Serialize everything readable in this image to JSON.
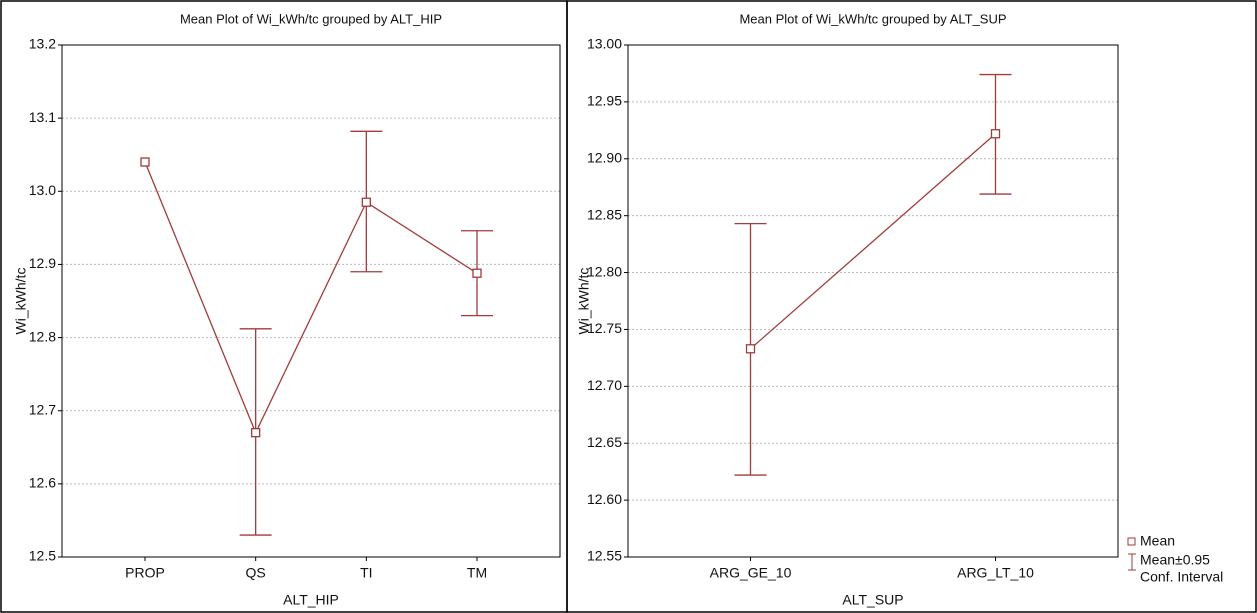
{
  "chart_data": [
    {
      "type": "line",
      "title": "Mean Plot of Wi_kWh/tc grouped by  ALT_HIP",
      "x_label": "ALT_HIP",
      "y_label": "Wi_kWh/tc",
      "categories": [
        "PROP",
        "QS",
        "TI",
        "TM"
      ],
      "series": [
        {
          "name": "Mean",
          "color": "#a23b3b",
          "values": [
            13.04,
            12.67,
            12.985,
            12.888
          ],
          "ci_lower": [
            null,
            12.53,
            12.89,
            12.83
          ],
          "ci_upper": [
            null,
            12.812,
            13.082,
            12.946
          ]
        }
      ],
      "ylim": [
        12.5,
        13.2
      ],
      "yticks": [
        12.5,
        12.6,
        12.7,
        12.8,
        12.9,
        {
          "value": 13.0,
          "label": "13.0"
        },
        13.1,
        13.2
      ],
      "grid": true
    },
    {
      "type": "line",
      "title": "Mean Plot of Wi_kWh/tc grouped by  ALT_SUP",
      "x_label": "ALT_SUP",
      "y_label": "Wi_kWh/tc",
      "categories": [
        "ARG_GE_10",
        "ARG_LT_10"
      ],
      "series": [
        {
          "name": "Mean",
          "color": "#a23b3b",
          "values": [
            12.733,
            12.922
          ],
          "ci_lower": [
            12.622,
            12.869
          ],
          "ci_upper": [
            12.843,
            12.974
          ]
        }
      ],
      "ylim": [
        12.55,
        13.0
      ],
      "yticks": [
        12.55,
        {
          "value": 12.6,
          "label": "12.60"
        },
        12.65,
        {
          "value": 12.7,
          "label": "12.70"
        },
        12.75,
        {
          "value": 12.8,
          "label": "12.80"
        },
        12.85,
        {
          "value": 12.9,
          "label": "12.90"
        },
        12.95,
        {
          "value": 13.0,
          "label": "13.00"
        }
      ],
      "grid": true,
      "legend": {
        "position": "right",
        "entries": [
          "Mean",
          "Mean±0.95",
          "Conf. Interval"
        ]
      }
    }
  ]
}
